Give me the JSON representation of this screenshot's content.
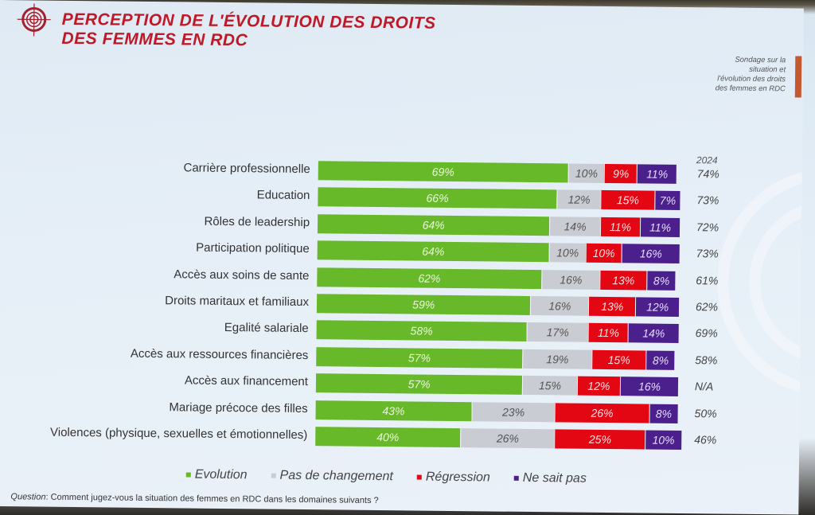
{
  "header": {
    "title_line1": "PERCEPTION DE L'ÉVOLUTION DES DROITS",
    "title_line2": "DES FEMMES EN RDC",
    "side_note": [
      "Sondage sur la",
      "situation et",
      "l'évolution des droits",
      "des femmes en RDC"
    ],
    "logo_icon": "target-icon"
  },
  "colors": {
    "evolution": "#67b92a",
    "pas_de_changement": "#c9ccd2",
    "regression": "#e30613",
    "ne_sait_pas": "#4b1f8c",
    "title": "#c01826"
  },
  "chart_data": {
    "type": "bar",
    "orientation": "horizontal-stacked",
    "title": "PERCEPTION DE L'ÉVOLUTION DES DROITS DES FEMMES EN RDC",
    "categories": [
      "Carrière professionnelle",
      "Education",
      "Rôles de leadership",
      "Participation politique",
      "Accès aux soins de sante",
      "Droits maritaux et familiaux",
      "Egalité salariale",
      "Accès aux ressources financières",
      "Accès aux financement",
      "Mariage précoce des filles",
      "Violences (physique, sexuelles et émotionnelles)"
    ],
    "series": [
      {
        "name": "Evolution",
        "key": "evo",
        "values": [
          69,
          66,
          64,
          64,
          62,
          59,
          58,
          57,
          57,
          43,
          40
        ]
      },
      {
        "name": "Pas de changement",
        "key": "pas",
        "values": [
          10,
          12,
          14,
          10,
          16,
          16,
          17,
          19,
          15,
          23,
          26
        ]
      },
      {
        "name": "Régression",
        "key": "reg",
        "values": [
          9,
          15,
          11,
          10,
          13,
          13,
          11,
          15,
          12,
          26,
          25
        ]
      },
      {
        "name": "Ne sait pas",
        "key": "ns",
        "values": [
          11,
          7,
          11,
          16,
          8,
          12,
          14,
          8,
          16,
          8,
          10
        ]
      }
    ],
    "year_column": {
      "label": "2024",
      "values": [
        "74%",
        "73%",
        "72%",
        "73%",
        "61%",
        "62%",
        "69%",
        "58%",
        "N/A",
        "50%",
        "46%"
      ]
    },
    "unit": "%",
    "legend_position": "bottom",
    "grid": false
  },
  "legend": [
    "Evolution",
    "Pas de changement",
    "Régression",
    "Ne sait pas"
  ],
  "footer": {
    "question_label": "Question",
    "question_text": ": Comment jugez-vous la situation des femmes en RDC dans les domaines suivants ?"
  }
}
